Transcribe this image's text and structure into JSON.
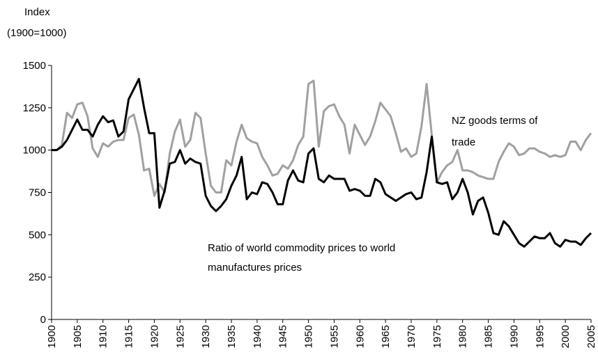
{
  "chart_data": {
    "type": "line",
    "ylabel": [
      "Index",
      "(1900=1000)"
    ],
    "x": [
      1900,
      1901,
      1902,
      1903,
      1904,
      1905,
      1906,
      1907,
      1908,
      1909,
      1910,
      1911,
      1912,
      1913,
      1914,
      1915,
      1916,
      1917,
      1918,
      1919,
      1920,
      1921,
      1922,
      1923,
      1924,
      1925,
      1926,
      1927,
      1928,
      1929,
      1930,
      1931,
      1932,
      1933,
      1934,
      1935,
      1936,
      1937,
      1938,
      1939,
      1940,
      1941,
      1942,
      1943,
      1944,
      1945,
      1946,
      1947,
      1948,
      1949,
      1950,
      1951,
      1952,
      1953,
      1954,
      1955,
      1956,
      1957,
      1958,
      1959,
      1960,
      1961,
      1962,
      1963,
      1964,
      1965,
      1966,
      1967,
      1968,
      1969,
      1970,
      1971,
      1972,
      1973,
      1974,
      1975,
      1976,
      1977,
      1978,
      1979,
      1980,
      1981,
      1982,
      1983,
      1984,
      1985,
      1986,
      1987,
      1988,
      1989,
      1990,
      1991,
      1992,
      1993,
      1994,
      1995,
      1996,
      1997,
      1998,
      1999,
      2000,
      2001,
      2002,
      2003,
      2004,
      2005
    ],
    "series": [
      {
        "color": "#a0a0a0",
        "values": [
          1000,
          1000,
          1030,
          1220,
          1190,
          1270,
          1280,
          1200,
          1010,
          960,
          1040,
          1020,
          1050,
          1060,
          1060,
          1190,
          1210,
          1090,
          880,
          890,
          730,
          800,
          750,
          980,
          1110,
          1180,
          1020,
          1060,
          1220,
          1190,
          980,
          790,
          750,
          750,
          940,
          910,
          1050,
          1150,
          1070,
          1050,
          1040,
          960,
          910,
          850,
          860,
          910,
          890,
          940,
          1030,
          1080,
          1390,
          1410,
          1020,
          1230,
          1260,
          1270,
          1200,
          1150,
          980,
          1150,
          1090,
          1030,
          1080,
          1170,
          1280,
          1240,
          1200,
          1100,
          990,
          1010,
          960,
          980,
          1140,
          1390,
          1090,
          810,
          870,
          910,
          930,
          1000,
          880,
          880,
          870,
          850,
          840,
          830,
          830,
          930,
          990,
          1040,
          1020,
          970,
          980,
          1010,
          1010,
          990,
          980,
          960,
          970,
          960,
          970,
          1050,
          1050,
          1000,
          1060,
          1100
        ]
      },
      {
        "color": "#000000",
        "values": [
          1000,
          1000,
          1020,
          1060,
          1120,
          1180,
          1120,
          1120,
          1080,
          1150,
          1200,
          1165,
          1175,
          1080,
          1110,
          1300,
          1360,
          1420,
          1250,
          1100,
          1100,
          660,
          760,
          920,
          930,
          1000,
          920,
          950,
          930,
          920,
          730,
          670,
          640,
          670,
          710,
          790,
          850,
          960,
          710,
          750,
          740,
          810,
          800,
          750,
          680,
          680,
          820,
          880,
          820,
          810,
          980,
          1010,
          830,
          810,
          850,
          830,
          830,
          830,
          760,
          770,
          760,
          730,
          730,
          830,
          810,
          740,
          720,
          700,
          720,
          740,
          750,
          710,
          720,
          870,
          1080,
          810,
          800,
          810,
          710,
          750,
          830,
          750,
          620,
          700,
          720,
          630,
          510,
          500,
          580,
          550,
          500,
          450,
          430,
          460,
          490,
          480,
          480,
          510,
          450,
          430,
          470,
          460,
          460,
          440,
          480,
          510
        ]
      }
    ],
    "annotations": [
      {
        "lines": [
          "NZ goods terms of",
          "trade"
        ]
      },
      {
        "lines": [
          "Ratio of world commodity prices to world",
          "manufactures prices"
        ]
      }
    ],
    "xlim": [
      1900,
      2005
    ],
    "xticks": [
      1900,
      1905,
      1910,
      1915,
      1920,
      1925,
      1930,
      1935,
      1940,
      1945,
      1950,
      1955,
      1960,
      1965,
      1970,
      1975,
      1980,
      1985,
      1990,
      1995,
      2000,
      2005
    ],
    "ylim": [
      0,
      1500
    ],
    "yticks": [
      0,
      250,
      500,
      750,
      1000,
      1250,
      1500
    ]
  }
}
